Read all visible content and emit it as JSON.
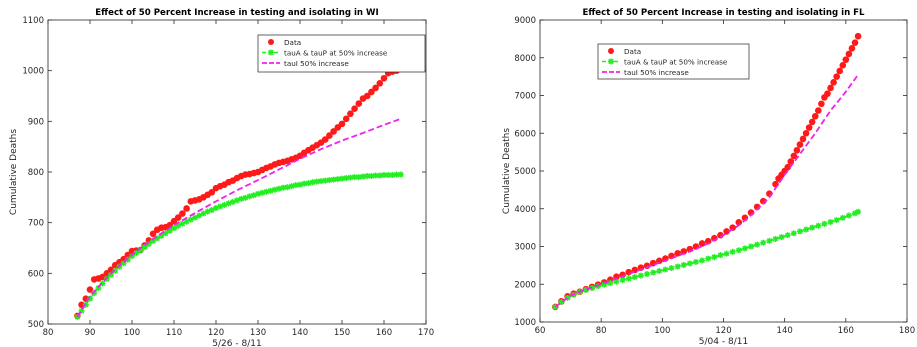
{
  "chart_data": [
    {
      "type": "scatter",
      "title": "Effect of 50 Percent Increase in testing and isolating in WI",
      "xlabel": "5/26 - 8/11",
      "ylabel": "Cumulative Deaths",
      "xlim": [
        80,
        170
      ],
      "ylim": [
        500,
        1100
      ],
      "xticks": [
        80,
        90,
        100,
        110,
        120,
        130,
        140,
        150,
        160,
        170
      ],
      "yticks": [
        500,
        600,
        700,
        800,
        900,
        1000,
        1100
      ],
      "legend_position": "top-right",
      "colors": {
        "data": "#ff1a1a",
        "tau_a_p": "#22ee22",
        "tau_i": "#ee22ee"
      },
      "series": [
        {
          "name": "Data",
          "style": "dots",
          "x": [
            87,
            88,
            89,
            90,
            91,
            92,
            93,
            94,
            95,
            96,
            97,
            98,
            99,
            100,
            101,
            102,
            103,
            104,
            105,
            106,
            107,
            108,
            109,
            110,
            111,
            112,
            113,
            114,
            115,
            116,
            117,
            118,
            119,
            120,
            121,
            122,
            123,
            124,
            125,
            126,
            127,
            128,
            129,
            130,
            131,
            132,
            133,
            134,
            135,
            136,
            137,
            138,
            139,
            140,
            141,
            142,
            143,
            144,
            145,
            146,
            147,
            148,
            149,
            150,
            151,
            152,
            153,
            154,
            155,
            156,
            157,
            158,
            159,
            160,
            161,
            162,
            163,
            164
          ],
          "y": [
            516,
            538,
            550,
            568,
            588,
            590,
            593,
            600,
            607,
            616,
            622,
            628,
            636,
            644,
            645,
            646,
            655,
            665,
            678,
            686,
            690,
            691,
            695,
            703,
            710,
            718,
            728,
            742,
            744,
            746,
            750,
            755,
            760,
            768,
            772,
            775,
            780,
            783,
            788,
            792,
            795,
            796,
            798,
            800,
            804,
            808,
            811,
            815,
            818,
            820,
            822,
            825,
            828,
            832,
            838,
            843,
            848,
            853,
            858,
            864,
            872,
            880,
            888,
            895,
            905,
            915,
            925,
            935,
            945,
            950,
            958,
            966,
            975,
            985,
            995,
            998,
            1000,
            1006
          ]
        },
        {
          "name": "tauA & tauP at 50% increase",
          "style": "line-star",
          "x": [
            87,
            88,
            89,
            90,
            91,
            92,
            93,
            94,
            95,
            96,
            97,
            98,
            99,
            100,
            101,
            102,
            103,
            104,
            105,
            106,
            107,
            108,
            109,
            110,
            111,
            112,
            113,
            114,
            115,
            116,
            117,
            118,
            119,
            120,
            121,
            122,
            123,
            124,
            125,
            126,
            127,
            128,
            129,
            130,
            131,
            132,
            133,
            134,
            135,
            136,
            137,
            138,
            139,
            140,
            141,
            142,
            143,
            144,
            145,
            146,
            147,
            148,
            149,
            150,
            151,
            152,
            153,
            154,
            155,
            156,
            157,
            158,
            159,
            160,
            161,
            162,
            163,
            164
          ],
          "y": [
            514,
            526,
            538,
            550,
            561,
            571,
            580,
            589,
            597,
            605,
            613,
            620,
            627,
            634,
            640,
            646,
            652,
            658,
            664,
            669,
            674,
            679,
            684,
            689,
            694,
            698,
            702,
            706,
            710,
            714,
            718,
            722,
            725,
            729,
            732,
            735,
            738,
            741,
            744,
            747,
            749,
            752,
            754,
            757,
            759,
            761,
            763,
            765,
            767,
            769,
            770,
            772,
            774,
            775,
            777,
            778,
            780,
            781,
            782,
            783,
            784,
            785,
            786,
            787,
            788,
            789,
            790,
            790,
            791,
            792,
            792,
            793,
            793,
            794,
            794,
            794,
            795,
            795
          ]
        },
        {
          "name": "tauI 50% increase",
          "style": "dashed",
          "x": [
            87,
            90,
            95,
            100,
            105,
            110,
            115,
            120,
            125,
            130,
            135,
            140,
            145,
            150,
            155,
            160,
            164
          ],
          "y": [
            514,
            555,
            600,
            637,
            668,
            695,
            719,
            742,
            764,
            784,
            805,
            826,
            845,
            862,
            877,
            893,
            905
          ]
        }
      ]
    },
    {
      "type": "scatter",
      "title": "Effect of 50 Percent Increase in testing and isolating in FL",
      "xlabel": "5/04 - 8/11",
      "ylabel": "Cumulative Deaths",
      "xlim": [
        60,
        180
      ],
      "ylim": [
        1000,
        9000
      ],
      "xticks": [
        60,
        80,
        100,
        120,
        140,
        160,
        180
      ],
      "yticks": [
        1000,
        2000,
        3000,
        4000,
        5000,
        6000,
        7000,
        8000,
        9000
      ],
      "legend_position": "top-left",
      "colors": {
        "data": "#ff1a1a",
        "tau_a_p": "#22ee22",
        "tau_i": "#ee22ee"
      },
      "series": [
        {
          "name": "Data",
          "style": "dots",
          "x": [
            65,
            67,
            69,
            71,
            73,
            75,
            77,
            79,
            81,
            83,
            85,
            87,
            89,
            91,
            93,
            95,
            97,
            99,
            101,
            103,
            105,
            107,
            109,
            111,
            113,
            115,
            117,
            119,
            121,
            123,
            125,
            127,
            129,
            131,
            133,
            135,
            137,
            138,
            139,
            140,
            141,
            142,
            143,
            144,
            145,
            146,
            147,
            148,
            149,
            150,
            151,
            152,
            153,
            154,
            155,
            156,
            157,
            158,
            159,
            160,
            161,
            162,
            163,
            164
          ],
          "y": [
            1400,
            1550,
            1680,
            1750,
            1800,
            1870,
            1930,
            1990,
            2050,
            2120,
            2200,
            2250,
            2320,
            2380,
            2440,
            2490,
            2560,
            2620,
            2680,
            2750,
            2820,
            2870,
            2930,
            3000,
            3080,
            3140,
            3220,
            3300,
            3400,
            3500,
            3640,
            3760,
            3900,
            4050,
            4200,
            4400,
            4650,
            4800,
            4900,
            5000,
            5100,
            5250,
            5400,
            5550,
            5700,
            5850,
            6000,
            6150,
            6300,
            6450,
            6600,
            6780,
            6950,
            7050,
            7200,
            7350,
            7500,
            7650,
            7800,
            7950,
            8100,
            8250,
            8400,
            8570
          ]
        },
        {
          "name": "tauA & tauP at 50% increase",
          "style": "line-star",
          "x": [
            65,
            67,
            69,
            71,
            73,
            75,
            77,
            79,
            81,
            83,
            85,
            87,
            89,
            91,
            93,
            95,
            97,
            99,
            101,
            103,
            105,
            107,
            109,
            111,
            113,
            115,
            117,
            119,
            121,
            123,
            125,
            127,
            129,
            131,
            133,
            135,
            137,
            139,
            141,
            143,
            145,
            147,
            149,
            151,
            153,
            155,
            157,
            159,
            161,
            163,
            164
          ],
          "y": [
            1400,
            1530,
            1640,
            1720,
            1790,
            1850,
            1900,
            1950,
            1990,
            2030,
            2070,
            2110,
            2150,
            2190,
            2230,
            2270,
            2310,
            2350,
            2390,
            2430,
            2470,
            2510,
            2550,
            2590,
            2630,
            2680,
            2720,
            2770,
            2810,
            2860,
            2900,
            2950,
            3000,
            3050,
            3100,
            3150,
            3200,
            3250,
            3300,
            3350,
            3400,
            3450,
            3500,
            3550,
            3600,
            3650,
            3700,
            3760,
            3820,
            3880,
            3920
          ]
        },
        {
          "name": "tauI 50% increase",
          "style": "dashed",
          "x": [
            65,
            70,
            75,
            80,
            85,
            90,
            95,
            100,
            105,
            110,
            115,
            120,
            125,
            130,
            135,
            140,
            145,
            150,
            155,
            160,
            164
          ],
          "y": [
            1400,
            1700,
            1860,
            2000,
            2150,
            2300,
            2450,
            2600,
            2750,
            2900,
            3080,
            3300,
            3560,
            3900,
            4300,
            4900,
            5450,
            6000,
            6600,
            7100,
            7550
          ]
        }
      ]
    }
  ]
}
